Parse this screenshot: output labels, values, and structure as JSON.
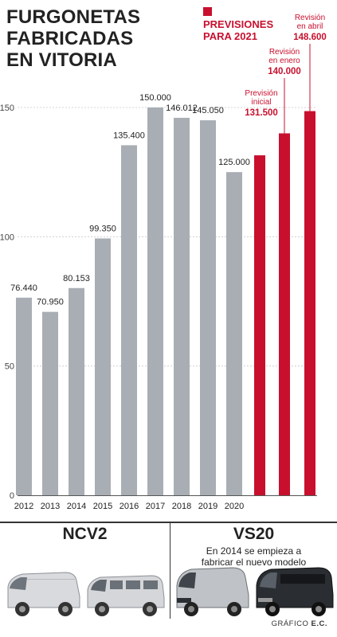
{
  "title_lines": [
    "FURGONETAS",
    "FABRICADAS",
    "EN VITORIA"
  ],
  "legend": {
    "lines": [
      "PREVISIONES",
      "PARA 2021"
    ],
    "color": "#c8102e"
  },
  "chart_data": {
    "type": "bar",
    "unit_note": "",
    "categories": [
      "2012",
      "2013",
      "2014",
      "2015",
      "2016",
      "2017",
      "2018",
      "2019",
      "2020"
    ],
    "values": [
      76440,
      70950,
      80153,
      99350,
      135400,
      150000,
      146012,
      145050,
      125000
    ],
    "value_labels": [
      "76.440",
      "70.950",
      "80.153",
      "99.350",
      "135.400",
      "150.000",
      "146.012",
      "145.050",
      "125.000"
    ],
    "ylim": [
      0,
      150
    ],
    "y_ticks": [
      0,
      50,
      100,
      150
    ],
    "y_tick_labels": [
      "0",
      "50",
      "100",
      "150"
    ],
    "bar_color": "#a9aeb5",
    "grid": true,
    "projections": {
      "color": "#c8102e",
      "items": [
        {
          "label_lines": [
            "Previsión",
            "inicial"
          ],
          "value": 131500,
          "value_label": "131.500"
        },
        {
          "label_lines": [
            "Revisión",
            "en enero"
          ],
          "value": 140000,
          "value_label": "140.000"
        },
        {
          "label_lines": [
            "Revisión",
            "en abril"
          ],
          "value": 148600,
          "value_label": "148.600"
        }
      ]
    }
  },
  "models": {
    "left": {
      "name": "NCV2"
    },
    "right": {
      "name": "VS20",
      "note_lines": [
        "En 2014 se empieza a",
        "fabricar el nuevo modelo"
      ]
    }
  },
  "credit": {
    "prefix": "GRÁFICO",
    "source": "E.C."
  }
}
